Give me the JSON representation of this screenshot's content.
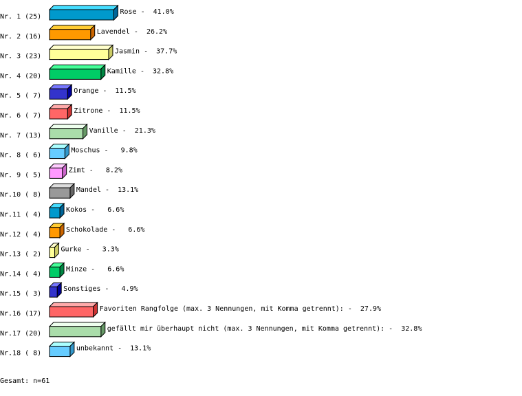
{
  "chart_data": {
    "type": "bar",
    "orientation": "horizontal",
    "style": "3d",
    "grid": false,
    "xlim": [
      0,
      100
    ],
    "categories": [
      "Nr. 1",
      "Nr. 2",
      "Nr. 3",
      "Nr. 4",
      "Nr. 5",
      "Nr. 6",
      "Nr. 7",
      "Nr. 8",
      "Nr. 9",
      "Nr.10",
      "Nr.11",
      "Nr.12",
      "Nr.13",
      "Nr.14",
      "Nr.15",
      "Nr.16",
      "Nr.17",
      "Nr.18"
    ],
    "labels": [
      "Rose",
      "Lavendel",
      "Jasmin",
      "Kamille",
      "Orange",
      "Zitrone",
      "Vanille",
      "Moschus",
      "Zimt",
      "Mandel",
      "Kokos",
      "Schokolade",
      "Gurke",
      "Minze",
      "Sonstiges",
      "Favoriten Rangfolge (max. 3 Nennungen, mit Komma getrennt):",
      "gefällt mir überhaupt nicht (max. 3 Nennungen, mit Komma getrennt):",
      "unbekannt"
    ],
    "counts": [
      25,
      16,
      23,
      20,
      7,
      7,
      13,
      6,
      5,
      8,
      4,
      4,
      2,
      4,
      3,
      17,
      20,
      8
    ],
    "values": [
      41.0,
      26.2,
      37.7,
      32.8,
      11.5,
      11.5,
      21.3,
      9.8,
      8.2,
      13.1,
      6.6,
      6.6,
      3.3,
      6.6,
      4.9,
      27.9,
      32.8,
      13.1
    ],
    "unit": "%",
    "colors": [
      {
        "front": "#0099cc",
        "top": "#44ddff",
        "side": "#006699"
      },
      {
        "front": "#ff9900",
        "top": "#ffcc33",
        "side": "#cc6600"
      },
      {
        "front": "#ffff99",
        "top": "#ffffcc",
        "side": "#cccc66"
      },
      {
        "front": "#00cc66",
        "top": "#44ff99",
        "side": "#008844"
      },
      {
        "front": "#3333cc",
        "top": "#7777ff",
        "side": "#000099"
      },
      {
        "front": "#ff6666",
        "top": "#ffaaaa",
        "side": "#cc3333"
      },
      {
        "front": "#aaddaa",
        "top": "#eeffee",
        "side": "#669966"
      },
      {
        "front": "#66ccff",
        "top": "#aaffff",
        "side": "#3399cc"
      },
      {
        "front": "#ff99ff",
        "top": "#ffccff",
        "side": "#cc66cc"
      },
      {
        "front": "#999999",
        "top": "#dddddd",
        "side": "#666666"
      }
    ],
    "total_label": "Gesamt: n=61"
  }
}
